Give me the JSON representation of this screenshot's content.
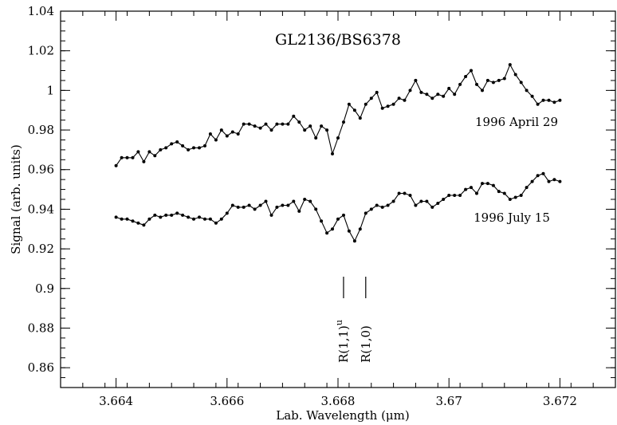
{
  "chart_data": {
    "type": "line",
    "title": "GL2136/BS6378",
    "xlabel": "Lab. Wavelength (μm)",
    "ylabel": "Signal (arb. units)",
    "xlim": [
      3.663,
      3.673
    ],
    "ylim": [
      0.85,
      1.04
    ],
    "xticks": [
      3.664,
      3.666,
      3.668,
      3.67,
      3.672
    ],
    "xtick_labels": [
      "3.664",
      "3.666",
      "3.668",
      "3.67",
      "3.672"
    ],
    "yticks": [
      0.86,
      0.88,
      0.9,
      0.92,
      0.94,
      0.96,
      0.98,
      1.0,
      1.02,
      1.04
    ],
    "ytick_labels": [
      "0.86",
      "0.88",
      "0.9",
      "0.92",
      "0.94",
      "0.96",
      "0.98",
      "1",
      "1.02",
      "1.04"
    ],
    "grid": false,
    "marker": "dot",
    "series": [
      {
        "name": "1996 April 29",
        "x": [
          3.664,
          3.6641,
          3.6642,
          3.6643,
          3.6644,
          3.6645,
          3.6646,
          3.6647,
          3.6648,
          3.6649,
          3.665,
          3.6651,
          3.6652,
          3.6653,
          3.6654,
          3.6655,
          3.6656,
          3.6657,
          3.6658,
          3.6659,
          3.666,
          3.6661,
          3.6662,
          3.6663,
          3.6664,
          3.6665,
          3.6666,
          3.6667,
          3.6668,
          3.6669,
          3.667,
          3.6671,
          3.6672,
          3.6673,
          3.6674,
          3.6675,
          3.6676,
          3.6677,
          3.6678,
          3.6679,
          3.668,
          3.6681,
          3.6682,
          3.6683,
          3.6684,
          3.6685,
          3.6686,
          3.6687,
          3.6688,
          3.6689,
          3.669,
          3.6691,
          3.6692,
          3.6693,
          3.6694,
          3.6695,
          3.6696,
          3.6697,
          3.6698,
          3.6699,
          3.67,
          3.6701,
          3.6702,
          3.6703,
          3.6704,
          3.6705,
          3.6706,
          3.6707,
          3.6708,
          3.6709,
          3.671,
          3.6711,
          3.6712,
          3.6713,
          3.6714,
          3.6715,
          3.6716,
          3.6717,
          3.6718,
          3.6719,
          3.672
        ],
        "y": [
          0.962,
          0.966,
          0.966,
          0.966,
          0.969,
          0.964,
          0.969,
          0.967,
          0.97,
          0.971,
          0.973,
          0.974,
          0.972,
          0.97,
          0.971,
          0.971,
          0.972,
          0.978,
          0.975,
          0.98,
          0.977,
          0.979,
          0.978,
          0.983,
          0.983,
          0.982,
          0.981,
          0.983,
          0.98,
          0.983,
          0.983,
          0.983,
          0.987,
          0.984,
          0.98,
          0.982,
          0.976,
          0.982,
          0.98,
          0.968,
          0.976,
          0.984,
          0.993,
          0.99,
          0.986,
          0.993,
          0.996,
          0.999,
          0.991,
          0.992,
          0.993,
          0.996,
          0.995,
          1.0,
          1.005,
          0.999,
          0.998,
          0.996,
          0.998,
          0.997,
          1.001,
          0.998,
          1.003,
          1.007,
          1.01,
          1.003,
          1.0,
          1.005,
          1.004,
          1.005,
          1.006,
          1.013,
          1.008,
          1.004,
          1.0,
          0.997,
          0.993,
          0.995,
          0.995,
          0.994,
          0.995
        ]
      },
      {
        "name": "1996 July 15",
        "x": [
          3.664,
          3.6641,
          3.6642,
          3.6643,
          3.6644,
          3.6645,
          3.6646,
          3.6647,
          3.6648,
          3.6649,
          3.665,
          3.6651,
          3.6652,
          3.6653,
          3.6654,
          3.6655,
          3.6656,
          3.6657,
          3.6658,
          3.6659,
          3.666,
          3.6661,
          3.6662,
          3.6663,
          3.6664,
          3.6665,
          3.6666,
          3.6667,
          3.6668,
          3.6669,
          3.667,
          3.6671,
          3.6672,
          3.6673,
          3.6674,
          3.6675,
          3.6676,
          3.6677,
          3.6678,
          3.6679,
          3.668,
          3.6681,
          3.6682,
          3.6683,
          3.6684,
          3.6685,
          3.6686,
          3.6687,
          3.6688,
          3.6689,
          3.669,
          3.6691,
          3.6692,
          3.6693,
          3.6694,
          3.6695,
          3.6696,
          3.6697,
          3.6698,
          3.6699,
          3.67,
          3.6701,
          3.6702,
          3.6703,
          3.6704,
          3.6705,
          3.6706,
          3.6707,
          3.6708,
          3.6709,
          3.671,
          3.6711,
          3.6712,
          3.6713,
          3.6714,
          3.6715,
          3.6716,
          3.6717,
          3.6718,
          3.6719,
          3.672
        ],
        "y": [
          0.936,
          0.935,
          0.935,
          0.934,
          0.933,
          0.932,
          0.935,
          0.937,
          0.936,
          0.937,
          0.937,
          0.938,
          0.937,
          0.936,
          0.935,
          0.936,
          0.935,
          0.935,
          0.933,
          0.935,
          0.938,
          0.942,
          0.941,
          0.941,
          0.942,
          0.94,
          0.942,
          0.944,
          0.937,
          0.941,
          0.942,
          0.942,
          0.944,
          0.939,
          0.945,
          0.944,
          0.94,
          0.934,
          0.928,
          0.93,
          0.935,
          0.937,
          0.929,
          0.924,
          0.93,
          0.938,
          0.94,
          0.942,
          0.941,
          0.942,
          0.944,
          0.948,
          0.948,
          0.947,
          0.942,
          0.944,
          0.944,
          0.941,
          0.943,
          0.945,
          0.947,
          0.947,
          0.947,
          0.95,
          0.951,
          0.948,
          0.953,
          0.953,
          0.952,
          0.949,
          0.948,
          0.945,
          0.946,
          0.947,
          0.951,
          0.954,
          0.957,
          0.958,
          0.954,
          0.955,
          0.954
        ]
      }
    ],
    "series_labels": [
      "1996 April 29",
      "1996 July 15"
    ],
    "annotations": [
      {
        "label": "R(1,1)",
        "superscript": "u",
        "x": 3.6681
      },
      {
        "label": "R(1,0)",
        "x": 3.6685
      }
    ]
  }
}
